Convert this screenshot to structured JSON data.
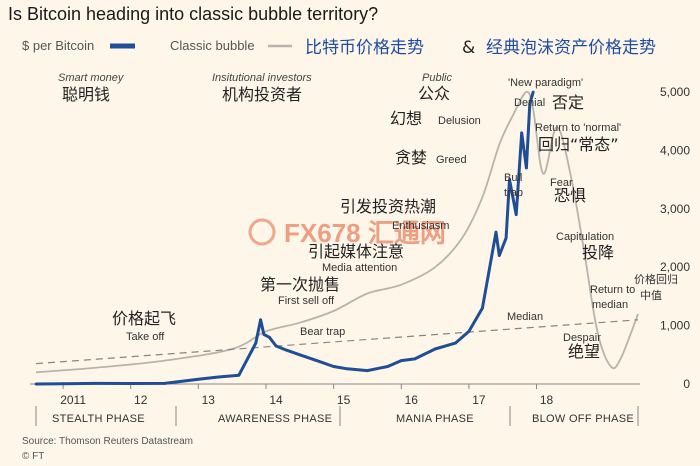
{
  "header": {
    "title": "Is Bitcoin heading into classic bubble territory?",
    "legend_btc": "$ per Bitcoin",
    "legend_bubble": "Classic bubble",
    "cn_title_a": "比特币价格走势",
    "cn_amp": "&",
    "cn_title_b": "经典泡沫资产价格走势"
  },
  "stages": {
    "smart_money": "Smart money",
    "smart_money_cn": "聪明钱",
    "institutional": "Insitutional investors",
    "institutional_cn": "机构投资者",
    "public": "Public",
    "public_cn": "公众"
  },
  "annotations": {
    "new_paradigm": "'New paradigm'",
    "denial": "Denial",
    "denial_cn": "否定",
    "return_normal": "Return to 'normal'",
    "return_normal_cn": "回归“常态”",
    "delusion_cn": "幻想",
    "delusion": "Delusion",
    "greed_cn": "贪婪",
    "greed": "Greed",
    "bull_trap_1": "Bull",
    "bull_trap_2": "trap",
    "fear": "Fear",
    "fear_cn": "恐惧",
    "enthusiasm_cn": "引发投资热潮",
    "enthusiasm": "Enthusiasm",
    "capitulation": "Capitulation",
    "capitulation_cn": "投降",
    "media_cn": "引起媒体注意",
    "media": "Media attention",
    "first_sell_cn": "第一次抛售",
    "first_sell": "First sell off",
    "median_return_cn_1": "价格回归",
    "median_return_cn_2": "中值",
    "return_median_1": "Return to",
    "return_median_2": "median",
    "take_off_cn": "价格起飞",
    "take_off": "Take off",
    "bear_trap": "Bear trap",
    "median": "Median",
    "despair": "Despair",
    "despair_cn": "绝望"
  },
  "phases": [
    "STEALTH PHASE",
    "AWARENESS PHASE",
    "MANIA PHASE",
    "BLOW OFF PHASE"
  ],
  "footer": {
    "source": "Source: Thomson Reuters Datastream",
    "ft": "© FT"
  },
  "watermark": "FX678 汇通网",
  "colors": {
    "btc": "#1f4e96",
    "bubble": "#b9b3ab",
    "median": "#8a8580",
    "background": "#fff6ea"
  },
  "chart_data": {
    "type": "line",
    "title": "Is Bitcoin heading into classic bubble territory?",
    "xlabel": "",
    "ylabel": "",
    "x_ticks": [
      "2011",
      "12",
      "13",
      "14",
      "15",
      "16",
      "17",
      "18"
    ],
    "y_ticks": [
      0,
      1000,
      2000,
      3000,
      4000,
      5000
    ],
    "ylim": [
      0,
      5000
    ],
    "xlim": [
      2010.6,
      2019.5
    ],
    "series": [
      {
        "name": "$ per Bitcoin",
        "x": [
          2010.6,
          2011.0,
          2011.5,
          2012.0,
          2012.5,
          2013.0,
          2013.3,
          2013.6,
          2013.85,
          2013.92,
          2013.97,
          2014.05,
          2014.15,
          2014.3,
          2014.5,
          2014.75,
          2015.0,
          2015.2,
          2015.5,
          2015.8,
          2016.0,
          2016.2,
          2016.5,
          2016.8,
          2017.0,
          2017.2,
          2017.4,
          2017.45,
          2017.55,
          2017.6,
          2017.7,
          2017.78,
          2017.85,
          2017.9,
          2017.95
        ],
        "y": [
          0,
          5,
          10,
          8,
          10,
          80,
          120,
          150,
          700,
          1100,
          850,
          800,
          650,
          580,
          500,
          400,
          300,
          260,
          230,
          300,
          400,
          430,
          600,
          700,
          900,
          1300,
          2600,
          2200,
          2500,
          3500,
          2900,
          4300,
          3700,
          4800,
          5000
        ]
      },
      {
        "name": "Classic bubble",
        "x": [
          2010.6,
          2011.5,
          2012.5,
          2013.5,
          2014.0,
          2014.5,
          2015.0,
          2015.5,
          2016.0,
          2016.5,
          2016.9,
          2017.2,
          2017.45,
          2017.65,
          2017.85,
          2017.95,
          2018.1,
          2018.3,
          2018.5,
          2018.7,
          2018.9,
          2019.1,
          2019.25,
          2019.5
        ],
        "y": [
          200,
          280,
          400,
          600,
          900,
          1050,
          1250,
          1550,
          1700,
          2000,
          2500,
          3200,
          4100,
          4600,
          5000,
          4700,
          3600,
          4400,
          3600,
          2300,
          900,
          300,
          450,
          1200
        ]
      },
      {
        "name": "Median",
        "x": [
          2010.6,
          2019.5
        ],
        "y": [
          350,
          1100
        ]
      }
    ],
    "legend_position": "top",
    "grid": false
  }
}
